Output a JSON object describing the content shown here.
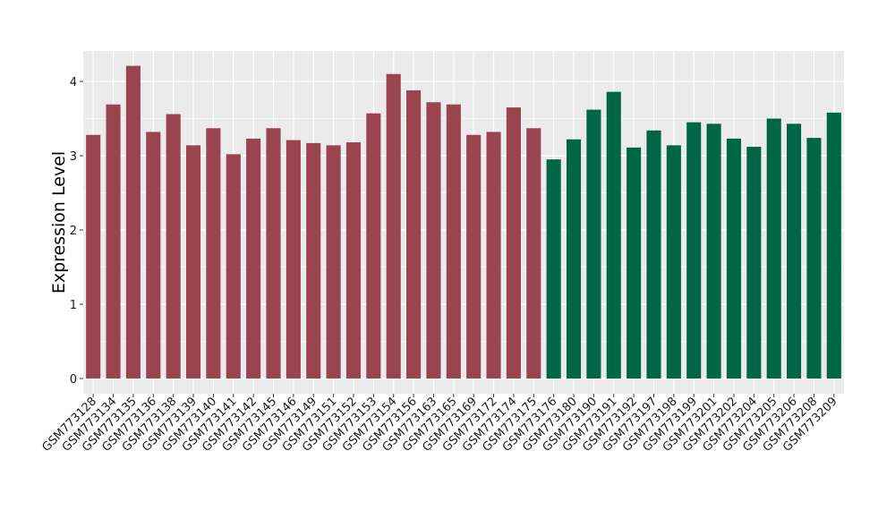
{
  "chart_data": {
    "type": "bar",
    "ylabel": "Expression Level",
    "xlabel": "",
    "title": "",
    "ylim": [
      0,
      4.4
    ],
    "yticks": [
      0,
      1,
      2,
      3,
      4
    ],
    "grid": true,
    "legend": "none",
    "colors": {
      "group1": "#9a4450",
      "group2": "#006645",
      "panel": "#ebebeb",
      "grid": "#ffffff"
    },
    "categories": [
      "GSM773128",
      "GSM773134",
      "GSM773135",
      "GSM773136",
      "GSM773138",
      "GSM773139",
      "GSM773140",
      "GSM773141",
      "GSM773142",
      "GSM773145",
      "GSM773146",
      "GSM773149",
      "GSM773151",
      "GSM773152",
      "GSM773153",
      "GSM773154",
      "GSM773156",
      "GSM773163",
      "GSM773165",
      "GSM773169",
      "GSM773172",
      "GSM773174",
      "GSM773175",
      "GSM773176",
      "GSM773180",
      "GSM773190",
      "GSM773191",
      "GSM773192",
      "GSM773197",
      "GSM773198",
      "GSM773199",
      "GSM773201",
      "GSM773202",
      "GSM773204",
      "GSM773205",
      "GSM773206",
      "GSM773208",
      "GSM773209"
    ],
    "values": [
      3.28,
      3.69,
      4.21,
      3.32,
      3.56,
      3.14,
      3.37,
      3.02,
      3.23,
      3.37,
      3.21,
      3.17,
      3.14,
      3.18,
      3.57,
      4.1,
      3.88,
      3.72,
      3.69,
      3.28,
      3.32,
      3.65,
      3.37,
      2.95,
      3.22,
      3.62,
      3.86,
      3.11,
      3.34,
      3.14,
      3.45,
      3.43,
      3.23,
      3.12,
      3.5,
      3.43,
      3.24,
      3.58
    ],
    "groups": [
      1,
      1,
      1,
      1,
      1,
      1,
      1,
      1,
      1,
      1,
      1,
      1,
      1,
      1,
      1,
      1,
      1,
      1,
      1,
      1,
      1,
      1,
      1,
      2,
      2,
      2,
      2,
      2,
      2,
      2,
      2,
      2,
      2,
      2,
      2,
      2,
      2,
      2
    ]
  }
}
